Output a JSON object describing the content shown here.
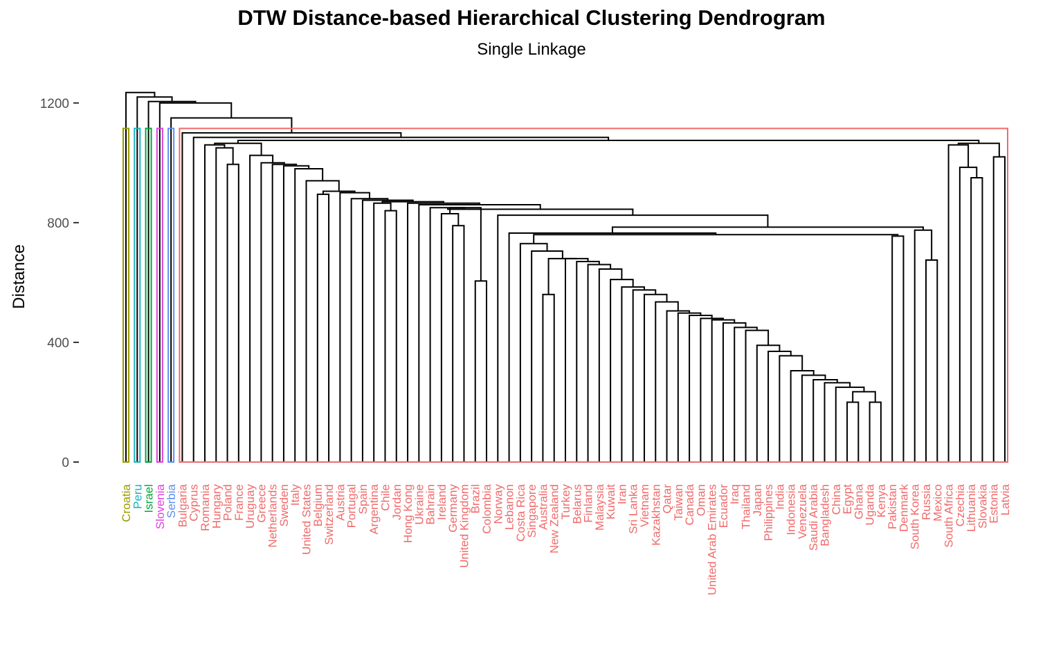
{
  "chart_data": {
    "type": "dendrogram",
    "title": "DTW Distance-based Hierarchical Clustering Dendrogram",
    "subtitle": "Single Linkage",
    "ylabel": "Distance",
    "xlabel": "",
    "ylim": [
      0,
      1200
    ],
    "yticks": [
      0,
      400,
      800,
      1200
    ],
    "grid": false,
    "leaves": [
      "Croatia",
      "Peru",
      "Israel",
      "Slovenia",
      "Serbia",
      "Bulgaria",
      "Cyprus",
      "Romania",
      "Hungary",
      "Poland",
      "France",
      "Uruguay",
      "Greece",
      "Netherlands",
      "Sweden",
      "Italy",
      "United States",
      "Belgium",
      "Switzerland",
      "Austria",
      "Portugal",
      "Spain",
      "Argentina",
      "Chile",
      "Jordan",
      "Hong Kong",
      "Ukraine",
      "Bahrain",
      "Ireland",
      "Germany",
      "United Kingdom",
      "Brazil",
      "Colombia",
      "Norway",
      "Lebanon",
      "Costa Rica",
      "Singapore",
      "Australia",
      "New Zealand",
      "Turkey",
      "Belarus",
      "Finland",
      "Malaysia",
      "Kuwait",
      "Iran",
      "Sri Lanka",
      "Vietnam",
      "Kazakhstan",
      "Qatar",
      "Taiwan",
      "Canada",
      "Oman",
      "United Arab Emirates",
      "Ecuador",
      "Iraq",
      "Thailand",
      "Japan",
      "Philippines",
      "India",
      "Indonesia",
      "Venezuela",
      "Saudi Arabia",
      "Bangladesh",
      "China",
      "Egypt",
      "Ghana",
      "Uganda",
      "Kenya",
      "Pakistan",
      "Denmark",
      "South Korea",
      "Russia",
      "Mexico",
      "South Africa",
      "Czechia",
      "Lithuania",
      "Slovakia",
      "Estonia",
      "Latvia"
    ],
    "merges": [
      {
        "a": "Egypt",
        "b": "Ghana",
        "height": 200
      },
      {
        "a": "Uganda",
        "b": "Kenya",
        "height": 200
      },
      {
        "a": "Australia",
        "b": "New Zealand",
        "height": 560
      },
      {
        "a": "Brazil",
        "b": "Colombia",
        "height": 605
      },
      {
        "a": "Russia",
        "b": "Mexico",
        "height": 675
      },
      {
        "a": "Denmark",
        "b": "South Korea",
        "height": 755
      },
      {
        "a": "Germany",
        "b": "United Kingdom",
        "height": 790
      },
      {
        "a": "Chile",
        "b": "Jordan",
        "height": 840
      },
      {
        "a": "Belgium",
        "b": "Switzerland",
        "height": 895
      },
      {
        "a": "Lithuania",
        "b": "Slovakia",
        "height": 950
      },
      {
        "a": "Poland",
        "b": "France",
        "height": 995
      },
      {
        "a": "Czechia",
        "b": "Lithuania/Slovakia",
        "height": 985
      },
      {
        "a": "Estonia",
        "b": "Latvia",
        "height": 1020
      },
      {
        "a": "Croatia",
        "b": "rest",
        "height": 1235
      }
    ],
    "clusters": [
      {
        "leaves": [
          "Croatia"
        ],
        "color": "#999900"
      },
      {
        "leaves": [
          "Peru"
        ],
        "color": "#17b2c2"
      },
      {
        "leaves": [
          "Israel"
        ],
        "color": "#00a63a"
      },
      {
        "leaves": [
          "Slovenia"
        ],
        "color": "#e040e0"
      },
      {
        "leaves": [
          "Serbia"
        ],
        "color": "#5c8ff0"
      },
      {
        "leaves": [
          "Bulgaria … Latvia"
        ],
        "color": "#f06a6a"
      }
    ]
  },
  "colors": {
    "axis": "#333333",
    "tick_text": "#4d4d4d",
    "branch": "#000000"
  }
}
